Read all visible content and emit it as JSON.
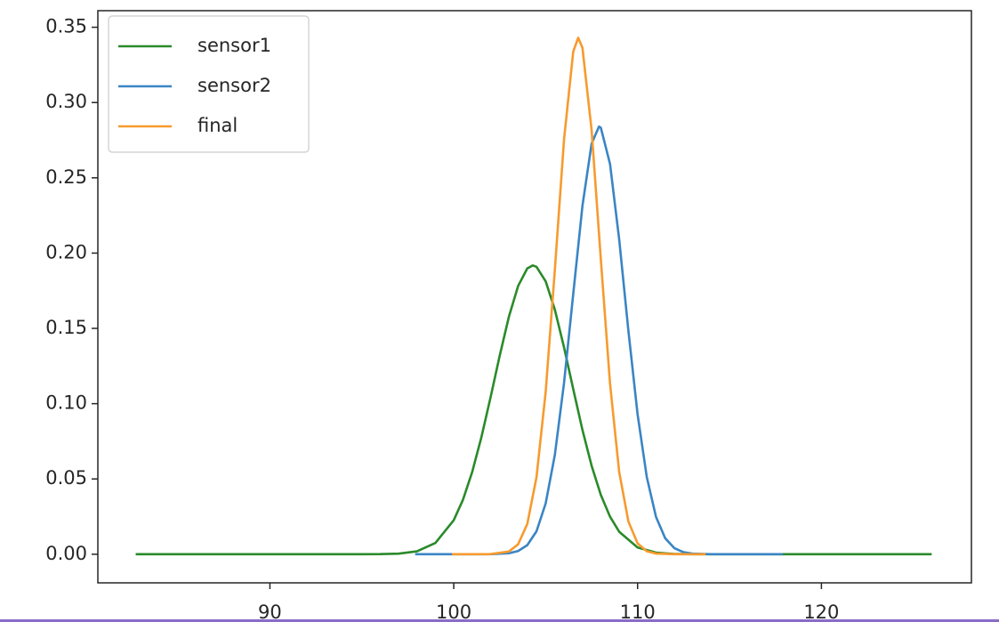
{
  "chart_data": {
    "type": "line",
    "xlim": [
      80.64,
      128.16
    ],
    "ylim": [
      -0.019,
      0.361
    ],
    "xticks": [
      90,
      100,
      110,
      120
    ],
    "yticks": [
      {
        "value": 0,
        "label": "0.00"
      },
      {
        "value": 0.05,
        "label": "0.05"
      },
      {
        "value": 0.1,
        "label": "0.10"
      },
      {
        "value": 0.15,
        "label": "0.15"
      },
      {
        "value": 0.2,
        "label": "0.20"
      },
      {
        "value": 0.25,
        "label": "0.25"
      },
      {
        "value": 0.3,
        "label": "0.30"
      },
      {
        "value": 0.35,
        "label": "0.35"
      }
    ],
    "grid": false,
    "legend": "upper left",
    "series": [
      {
        "name": "sensor1",
        "color": "#2a8a2a",
        "x": [
          82.7,
          90,
          95,
          96,
          97,
          98,
          99,
          100,
          100.5,
          101,
          101.5,
          102,
          102.5,
          103,
          103.5,
          104,
          104.3,
          104.5,
          105,
          105.5,
          106,
          106.5,
          107,
          107.5,
          108,
          108.5,
          109,
          110,
          111,
          112,
          113,
          115,
          120,
          126
        ],
        "values": [
          0,
          0,
          1e-05,
          7e-05,
          0.00041,
          0.00195,
          0.00746,
          0.02263,
          0.03616,
          0.05449,
          0.07751,
          0.10407,
          0.1319,
          0.15777,
          0.17812,
          0.18982,
          0.1918,
          0.19092,
          0.18125,
          0.1624,
          0.13735,
          0.10963,
          0.08259,
          0.05873,
          0.03942,
          0.02497,
          0.01493,
          0.00449,
          0.00107,
          0.0002,
          3e-05,
          0,
          0,
          0
        ]
      },
      {
        "name": "sensor2",
        "color": "#3a85c4",
        "x": [
          97.9,
          100,
          101,
          102,
          103,
          103.5,
          104,
          104.5,
          105,
          105.5,
          106,
          106.5,
          107,
          107.5,
          107.9,
          108,
          108.5,
          109,
          109.5,
          110,
          110.5,
          111,
          111.5,
          112,
          112.5,
          113,
          114,
          115,
          117.9
        ],
        "values": [
          0,
          0,
          0,
          4e-05,
          0.00065,
          0.00211,
          0.00603,
          0.0152,
          0.03375,
          0.06603,
          0.1138,
          0.17288,
          0.23132,
          0.27273,
          0.284,
          0.2833,
          0.25924,
          0.20902,
          0.1485,
          0.09295,
          0.05126,
          0.02491,
          0.01066,
          0.00402,
          0.00134,
          0.00039,
          2e-05,
          0,
          0
        ]
      },
      {
        "name": "final",
        "color": "#f79a2e",
        "x": [
          99.9,
          101,
          102,
          103,
          103.5,
          104,
          104.5,
          105,
          105.5,
          106,
          106.5,
          106.77,
          107,
          107.5,
          108,
          108.5,
          109,
          109.5,
          110,
          110.5,
          111,
          112,
          113.7
        ],
        "values": [
          0,
          0,
          8e-05,
          0.00179,
          0.00659,
          0.02011,
          0.05104,
          0.10774,
          0.18896,
          0.2755,
          0.33388,
          0.343,
          0.33636,
          0.28167,
          0.19606,
          0.11343,
          0.05457,
          0.02181,
          0.00725,
          0.002,
          0.00046,
          1e-05,
          0
        ]
      }
    ]
  }
}
